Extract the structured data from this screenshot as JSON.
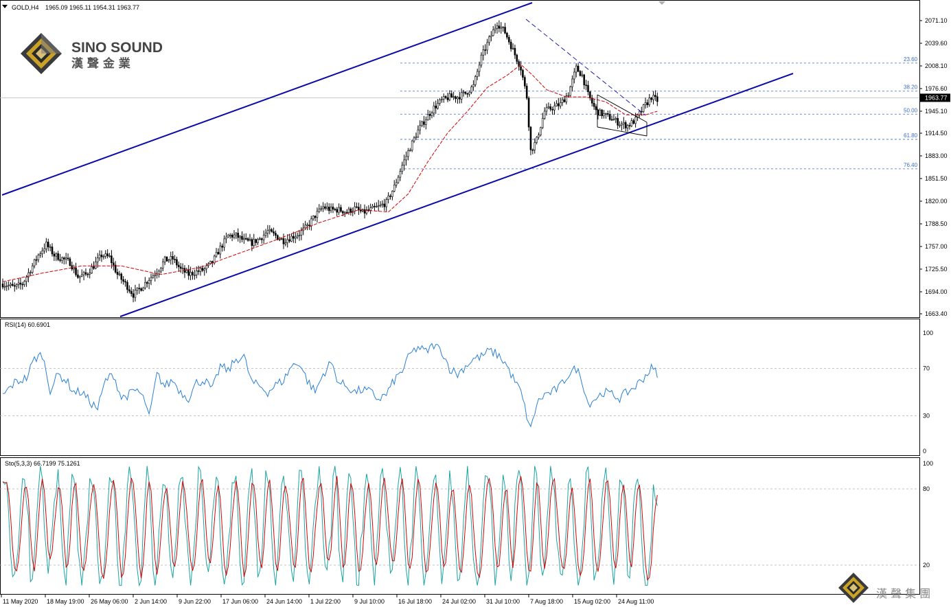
{
  "header": {
    "symbol": "GOLD,H4",
    "ohlc": "1965.09 1965.11 1954.31 1963.77"
  },
  "logo": {
    "name": "SINO SOUND",
    "chinese": "漢 聲 金 業",
    "group_chinese": "漢 聲 集 團"
  },
  "colors": {
    "candle": "#000000",
    "ma": "#d40000",
    "channel": "#0a0aa8",
    "fib": "#3a6cc8",
    "rsi": "#2a7fd4",
    "sto_main": "#1aa3a3",
    "sto_signal": "#d40000",
    "grid": "#c8c8c8"
  },
  "chart_data": [
    {
      "type": "candlestick",
      "title": "GOLD,H4",
      "ylim": [
        1650,
        2090
      ],
      "y_ticks": [
        "2071.10",
        "2039.60",
        "2008.10",
        "1976.60",
        "1945.10",
        "1914.50",
        "1883.00",
        "1851.50",
        "1820.00",
        "1788.50",
        "1757.00",
        "1725.50",
        "1694.00",
        "1663.40"
      ],
      "x_ticks": [
        "11 May 2020",
        "18 May 19:00",
        "26 May 06:00",
        "2 Jun 14:00",
        "9 Jun 22:00",
        "17 Jun 06:00",
        "24 Jun 14:00",
        "1 Jul 22:00",
        "9 Jul 10:00",
        "16 Jul 18:00",
        "24 Jul 02:00",
        "31 Jul 10:00",
        "7 Aug 18:00",
        "15 Aug 02:00",
        "24 Aug 11:00"
      ],
      "current_price": "1963.77",
      "price_anchors": [
        [
          0,
          1705
        ],
        [
          6,
          1700
        ],
        [
          10,
          1705
        ],
        [
          14,
          1725
        ],
        [
          18,
          1745
        ],
        [
          22,
          1760
        ],
        [
          26,
          1745
        ],
        [
          30,
          1740
        ],
        [
          34,
          1735
        ],
        [
          38,
          1715
        ],
        [
          42,
          1718
        ],
        [
          46,
          1730
        ],
        [
          50,
          1745
        ],
        [
          54,
          1742
        ],
        [
          58,
          1718
        ],
        [
          62,
          1705
        ],
        [
          66,
          1690
        ],
        [
          70,
          1700
        ],
        [
          74,
          1712
        ],
        [
          78,
          1722
        ],
        [
          82,
          1738
        ],
        [
          86,
          1740
        ],
        [
          90,
          1725
        ],
        [
          94,
          1718
        ],
        [
          98,
          1722
        ],
        [
          102,
          1725
        ],
        [
          106,
          1735
        ],
        [
          110,
          1755
        ],
        [
          114,
          1772
        ],
        [
          118,
          1772
        ],
        [
          122,
          1765
        ],
        [
          126,
          1762
        ],
        [
          130,
          1768
        ],
        [
          134,
          1778
        ],
        [
          138,
          1772
        ],
        [
          142,
          1765
        ],
        [
          146,
          1770
        ],
        [
          150,
          1775
        ],
        [
          154,
          1785
        ],
        [
          158,
          1800
        ],
        [
          162,
          1812
        ],
        [
          166,
          1808
        ],
        [
          170,
          1808
        ],
        [
          174,
          1805
        ],
        [
          178,
          1810
        ],
        [
          182,
          1804
        ],
        [
          186,
          1808
        ],
        [
          190,
          1812
        ],
        [
          194,
          1818
        ],
        [
          198,
          1840
        ],
        [
          202,
          1870
        ],
        [
          206,
          1895
        ],
        [
          210,
          1918
        ],
        [
          214,
          1935
        ],
        [
          218,
          1950
        ],
        [
          222,
          1960
        ],
        [
          226,
          1965
        ],
        [
          230,
          1965
        ],
        [
          234,
          1970
        ],
        [
          238,
          1980
        ],
        [
          242,
          2020
        ],
        [
          246,
          2045
        ],
        [
          250,
          2068
        ],
        [
          254,
          2055
        ],
        [
          258,
          2030
        ],
        [
          262,
          2005
        ],
        [
          265,
          1965
        ],
        [
          267,
          1890
        ],
        [
          270,
          1905
        ],
        [
          274,
          1945
        ],
        [
          278,
          1950
        ],
        [
          282,
          1955
        ],
        [
          286,
          1970
        ],
        [
          290,
          2005
        ],
        [
          293,
          1995
        ],
        [
          296,
          1968
        ],
        [
          300,
          1945
        ],
        [
          304,
          1940
        ],
        [
          308,
          1935
        ],
        [
          312,
          1928
        ],
        [
          316,
          1925
        ],
        [
          320,
          1933
        ],
        [
          324,
          1950
        ],
        [
          328,
          1965
        ],
        [
          331,
          1960
        ]
      ],
      "ma_anchors": [
        [
          0,
          1708
        ],
        [
          20,
          1720
        ],
        [
          40,
          1730
        ],
        [
          60,
          1730
        ],
        [
          80,
          1718
        ],
        [
          100,
          1728
        ],
        [
          120,
          1748
        ],
        [
          140,
          1768
        ],
        [
          160,
          1790
        ],
        [
          180,
          1808
        ],
        [
          195,
          1805
        ],
        [
          205,
          1830
        ],
        [
          215,
          1875
        ],
        [
          225,
          1915
        ],
        [
          235,
          1945
        ],
        [
          245,
          1978
        ],
        [
          255,
          1995
        ],
        [
          262,
          2010
        ],
        [
          268,
          1995
        ],
        [
          275,
          1975
        ],
        [
          285,
          1965
        ],
        [
          295,
          1965
        ],
        [
          305,
          1958
        ],
        [
          315,
          1940
        ],
        [
          325,
          1940
        ],
        [
          331,
          1945
        ]
      ],
      "fibonacci": [
        {
          "label": "23.60",
          "value": 2012
        },
        {
          "label": "38.20",
          "value": 1973
        },
        {
          "label": "50.00",
          "value": 1941
        },
        {
          "label": "61.80",
          "value": 1906
        },
        {
          "label": "76.40",
          "value": 1865
        }
      ]
    },
    {
      "type": "line",
      "title": "RSI(14) 60.6901",
      "ylim": [
        0,
        100
      ],
      "y_ticks": [
        "100",
        "70",
        "30",
        "0"
      ],
      "levels": [
        70,
        30
      ],
      "anchors": [
        [
          0,
          47
        ],
        [
          6,
          58
        ],
        [
          12,
          62
        ],
        [
          16,
          78
        ],
        [
          20,
          82
        ],
        [
          24,
          52
        ],
        [
          28,
          65
        ],
        [
          32,
          60
        ],
        [
          36,
          50
        ],
        [
          40,
          50
        ],
        [
          44,
          42
        ],
        [
          48,
          36
        ],
        [
          52,
          60
        ],
        [
          56,
          65
        ],
        [
          60,
          45
        ],
        [
          64,
          48
        ],
        [
          68,
          52
        ],
        [
          72,
          42
        ],
        [
          74,
          28
        ],
        [
          78,
          65
        ],
        [
          82,
          55
        ],
        [
          86,
          60
        ],
        [
          90,
          50
        ],
        [
          94,
          45
        ],
        [
          98,
          58
        ],
        [
          102,
          60
        ],
        [
          106,
          52
        ],
        [
          110,
          72
        ],
        [
          114,
          68
        ],
        [
          118,
          78
        ],
        [
          122,
          80
        ],
        [
          126,
          58
        ],
        [
          130,
          55
        ],
        [
          134,
          50
        ],
        [
          138,
          56
        ],
        [
          142,
          60
        ],
        [
          146,
          72
        ],
        [
          150,
          75
        ],
        [
          154,
          60
        ],
        [
          158,
          50
        ],
        [
          162,
          65
        ],
        [
          166,
          75
        ],
        [
          170,
          58
        ],
        [
          174,
          55
        ],
        [
          178,
          50
        ],
        [
          182,
          52
        ],
        [
          186,
          50
        ],
        [
          190,
          44
        ],
        [
          194,
          48
        ],
        [
          198,
          60
        ],
        [
          202,
          68
        ],
        [
          206,
          82
        ],
        [
          210,
          88
        ],
        [
          214,
          84
        ],
        [
          218,
          90
        ],
        [
          222,
          85
        ],
        [
          226,
          70
        ],
        [
          230,
          65
        ],
        [
          234,
          72
        ],
        [
          238,
          78
        ],
        [
          242,
          80
        ],
        [
          246,
          85
        ],
        [
          250,
          82
        ],
        [
          254,
          75
        ],
        [
          258,
          62
        ],
        [
          262,
          50
        ],
        [
          265,
          30
        ],
        [
          267,
          18
        ],
        [
          270,
          40
        ],
        [
          274,
          48
        ],
        [
          278,
          50
        ],
        [
          282,
          55
        ],
        [
          286,
          65
        ],
        [
          290,
          70
        ],
        [
          293,
          60
        ],
        [
          296,
          40
        ],
        [
          300,
          45
        ],
        [
          304,
          50
        ],
        [
          308,
          48
        ],
        [
          312,
          45
        ],
        [
          316,
          50
        ],
        [
          320,
          55
        ],
        [
          324,
          62
        ],
        [
          328,
          70
        ],
        [
          331,
          66
        ]
      ]
    },
    {
      "type": "line",
      "title": "Sto(5,3,3) 66.7199 75.1261",
      "ylim": [
        0,
        100
      ],
      "y_ticks": [
        "100",
        "80",
        "20"
      ],
      "levels": [
        80,
        20
      ],
      "main_last": 66.7199,
      "signal_last": 75.1261
    }
  ]
}
